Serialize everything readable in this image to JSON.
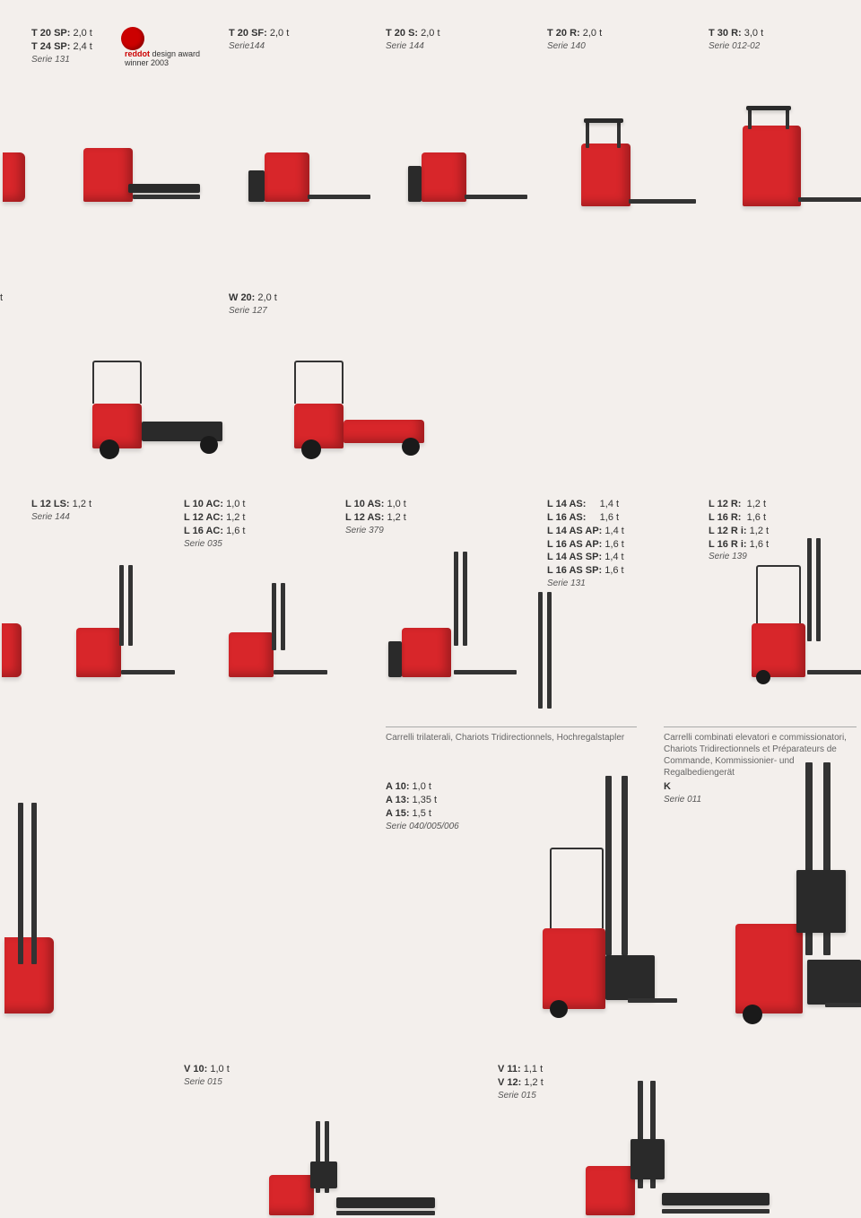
{
  "row1": {
    "col1": {
      "lines": [
        "<b>T 20 SP:</b> 2,0 t",
        "<b>T 24 SP:</b> 2,4 t"
      ],
      "serie": "Serie 131"
    },
    "award": {
      "brand": "reddot",
      "sub": "design award",
      "winner": "winner 2003"
    },
    "col2": {
      "lines": [
        "<b>T 20 SF:</b> 2,0 t"
      ],
      "serie": "Serie144"
    },
    "col3": {
      "lines": [
        "<b>T 20 S:</b> 2,0 t"
      ],
      "serie": "Serie 144"
    },
    "col4": {
      "lines": [
        "<b>T 20 R:</b> 2,0 t"
      ],
      "serie": "Serie 140"
    },
    "col5": {
      "lines": [
        "<b>T 30 R:</b> 3,0 t"
      ],
      "serie": "Serie 012-02"
    }
  },
  "row2": {
    "left_t": "t",
    "col1": {
      "lines": [
        "<b>W 20:</b>  2,0 t"
      ],
      "serie": "Serie 127"
    }
  },
  "row3": {
    "col1": {
      "lines": [
        "<b>L 12 LS:</b> 1,2 t"
      ],
      "serie": "Serie 144"
    },
    "col2": {
      "lines": [
        "<b>L 10 AC:</b> 1,0 t",
        "<b>L 12 AC:</b> 1,2 t",
        "<b>L 16 AC:</b> 1,6 t"
      ],
      "serie": "Serie 035"
    },
    "col3": {
      "lines": [
        "<b>L 10 AS:</b> 1,0 t",
        "<b>L 12 AS:</b> 1,2 t"
      ],
      "serie": "Serie 379"
    },
    "col4": {
      "lines": [
        "<b>L 14 AS:</b>&nbsp;&nbsp;&nbsp;&nbsp; 1,4 t",
        "<b>L 16 AS:</b>&nbsp;&nbsp;&nbsp;&nbsp; 1,6 t",
        "<b>L 14 AS AP:</b> 1,4 t",
        "<b>L 16 AS AP:</b> 1,6 t",
        "<b>L 14 AS SP:</b> 1,4 t",
        "<b>L 16 AS SP:</b> 1,6 t"
      ],
      "serie": "Serie 131"
    },
    "col5": {
      "lines": [
        "<b>L 12 R:</b>&nbsp; 1,2 t",
        "<b>L 16 R:</b>&nbsp; 1,6 t",
        "<b>L 12 R i:</b> 1,2 t",
        "<b>L 16 R i:</b> 1,6 t"
      ],
      "serie": "Serie 139"
    }
  },
  "row4": {
    "cat1": "Carrelli trilaterali, Chariots Tridirectionnels, Hochregalstapler",
    "cat2": "Carrelli combinati elevatori e commissionatori, Chariots Tridirectionnels et Préparateurs de Commande, Kommissionier- und Regalbediengerät",
    "col1": {
      "lines": [
        "<b>A 10:</b> 1,0 t",
        "<b>A 13:</b> 1,35 t",
        "<b>A 15:</b> 1,5 t"
      ],
      "serie": "Serie 040/005/006"
    },
    "col2": {
      "lines": [
        "<b>K</b>"
      ],
      "serie": "Serie 011"
    }
  },
  "row5": {
    "col1": {
      "lines": [
        "<b>V 10:</b> 1,0 t"
      ],
      "serie": "Serie 015"
    },
    "col2": {
      "lines": [
        "<b>V 11:</b> 1,1 t",
        "<b>V 12:</b> 1,2 t"
      ],
      "serie": "Serie 015"
    }
  },
  "colors": {
    "brand_red": "#d8262a",
    "dark": "#2a2a2a",
    "bg": "#f3efec"
  }
}
